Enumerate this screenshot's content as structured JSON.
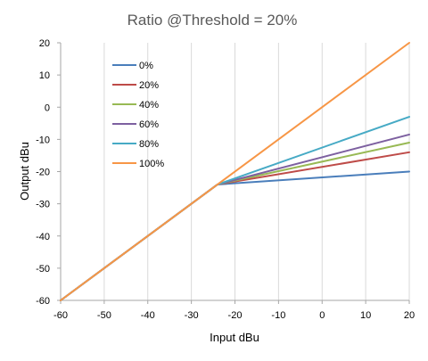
{
  "chart_data": {
    "type": "line",
    "title": "Ratio @Threshold = 20%",
    "xlabel": "Input dBu",
    "ylabel": "Output dBu",
    "xlim": [
      -60,
      20
    ],
    "ylim": [
      -60,
      20
    ],
    "x_ticks": [
      -60,
      -50,
      -40,
      -30,
      -20,
      -10,
      0,
      10,
      20
    ],
    "y_ticks": [
      -60,
      -50,
      -40,
      -30,
      -20,
      -10,
      0,
      10,
      20
    ],
    "grid": "vertical",
    "legend_position": "top-left",
    "series": [
      {
        "name": "0%",
        "color": "#4a7ebb",
        "x": [
          -60,
          -24,
          20
        ],
        "y": [
          -60,
          -24,
          -20
        ]
      },
      {
        "name": "20%",
        "color": "#be4b48",
        "x": [
          -60,
          -24,
          20
        ],
        "y": [
          -60,
          -24,
          -14
        ]
      },
      {
        "name": "40%",
        "color": "#98b954",
        "x": [
          -60,
          -24,
          20
        ],
        "y": [
          -60,
          -24,
          -11
        ]
      },
      {
        "name": "60%",
        "color": "#7d60a0",
        "x": [
          -60,
          -24,
          20
        ],
        "y": [
          -60,
          -24,
          -8.5
        ]
      },
      {
        "name": "80%",
        "color": "#46aac5",
        "x": [
          -60,
          -24,
          20
        ],
        "y": [
          -60,
          -24,
          -3
        ]
      },
      {
        "name": "100%",
        "color": "#f79646",
        "x": [
          -60,
          -24,
          20
        ],
        "y": [
          -60,
          -24,
          20
        ]
      }
    ]
  }
}
